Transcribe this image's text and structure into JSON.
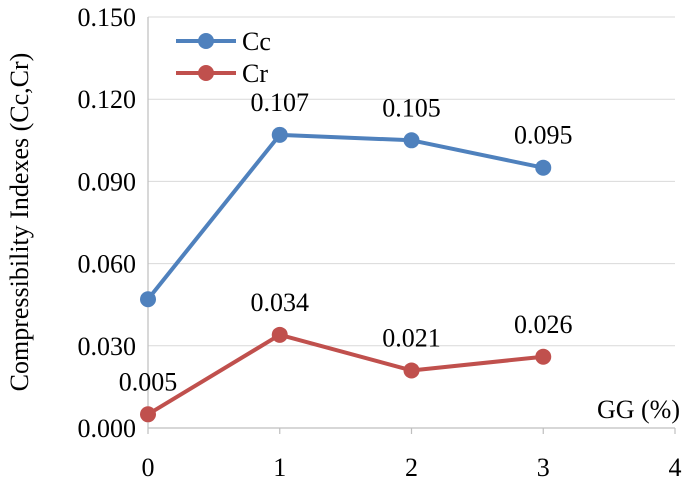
{
  "chart_data": {
    "type": "line",
    "title": "",
    "xlabel": "GG (%)",
    "ylabel": "Compressibility Indexes (Cc,Cr)",
    "xlim": [
      0,
      4
    ],
    "ylim": [
      0.0,
      0.15
    ],
    "x_ticks": [
      "0",
      "1",
      "2",
      "3",
      "4"
    ],
    "y_ticks": [
      "0.000",
      "0.030",
      "0.060",
      "0.090",
      "0.120",
      "0.150"
    ],
    "grid": "horizontal",
    "legend_position": "top-left",
    "series": [
      {
        "name": "Cc",
        "color": "#4f81bd",
        "x": [
          0,
          1,
          2,
          3
        ],
        "y": [
          0.047,
          0.107,
          0.105,
          0.095
        ],
        "labels": [
          "",
          "0.107",
          "0.105",
          "0.095"
        ]
      },
      {
        "name": "Cr",
        "color": "#c0504d",
        "x": [
          0,
          1,
          2,
          3
        ],
        "y": [
          0.005,
          0.034,
          0.021,
          0.026
        ],
        "labels": [
          "0.005",
          "0.034",
          "0.021",
          "0.026"
        ]
      }
    ]
  }
}
